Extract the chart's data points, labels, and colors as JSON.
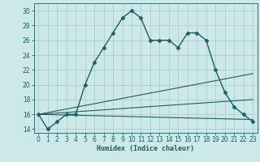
{
  "xlabel": "Humidex (Indice chaleur)",
  "background_color": "#cce8e8",
  "grid_color": "#aacece",
  "line_color": "#1a6060",
  "xlim": [
    -0.5,
    23.5
  ],
  "ylim": [
    13.5,
    31
  ],
  "yticks": [
    14,
    16,
    18,
    20,
    22,
    24,
    26,
    28,
    30
  ],
  "xticks": [
    0,
    1,
    2,
    3,
    4,
    5,
    6,
    7,
    8,
    9,
    10,
    11,
    12,
    13,
    14,
    15,
    16,
    17,
    18,
    19,
    20,
    21,
    22,
    23
  ],
  "series": [
    {
      "x": [
        0,
        1,
        2,
        3,
        4,
        5,
        6,
        7,
        8,
        9,
        10,
        11,
        12,
        13,
        14,
        15,
        16,
        17,
        18,
        19,
        20,
        21,
        22,
        23
      ],
      "y": [
        16,
        14,
        15,
        16,
        16,
        20,
        23,
        25,
        27,
        29,
        30,
        29,
        26,
        26,
        26,
        25,
        27,
        27,
        26,
        22,
        19,
        17,
        16,
        15
      ],
      "marker": "D",
      "markersize": 2.5,
      "linewidth": 1.0,
      "dotted": false
    },
    {
      "x": [
        0,
        23
      ],
      "y": [
        16,
        15.3
      ],
      "marker": null,
      "markersize": 0,
      "linewidth": 0.8,
      "dotted": false
    },
    {
      "x": [
        0,
        23
      ],
      "y": [
        16,
        18.0
      ],
      "marker": null,
      "markersize": 0,
      "linewidth": 0.8,
      "dotted": false
    },
    {
      "x": [
        0,
        23
      ],
      "y": [
        16,
        21.5
      ],
      "marker": null,
      "markersize": 0,
      "linewidth": 0.8,
      "dotted": false
    }
  ],
  "xlabel_fontsize": 6.0,
  "tick_fontsize": 5.5
}
